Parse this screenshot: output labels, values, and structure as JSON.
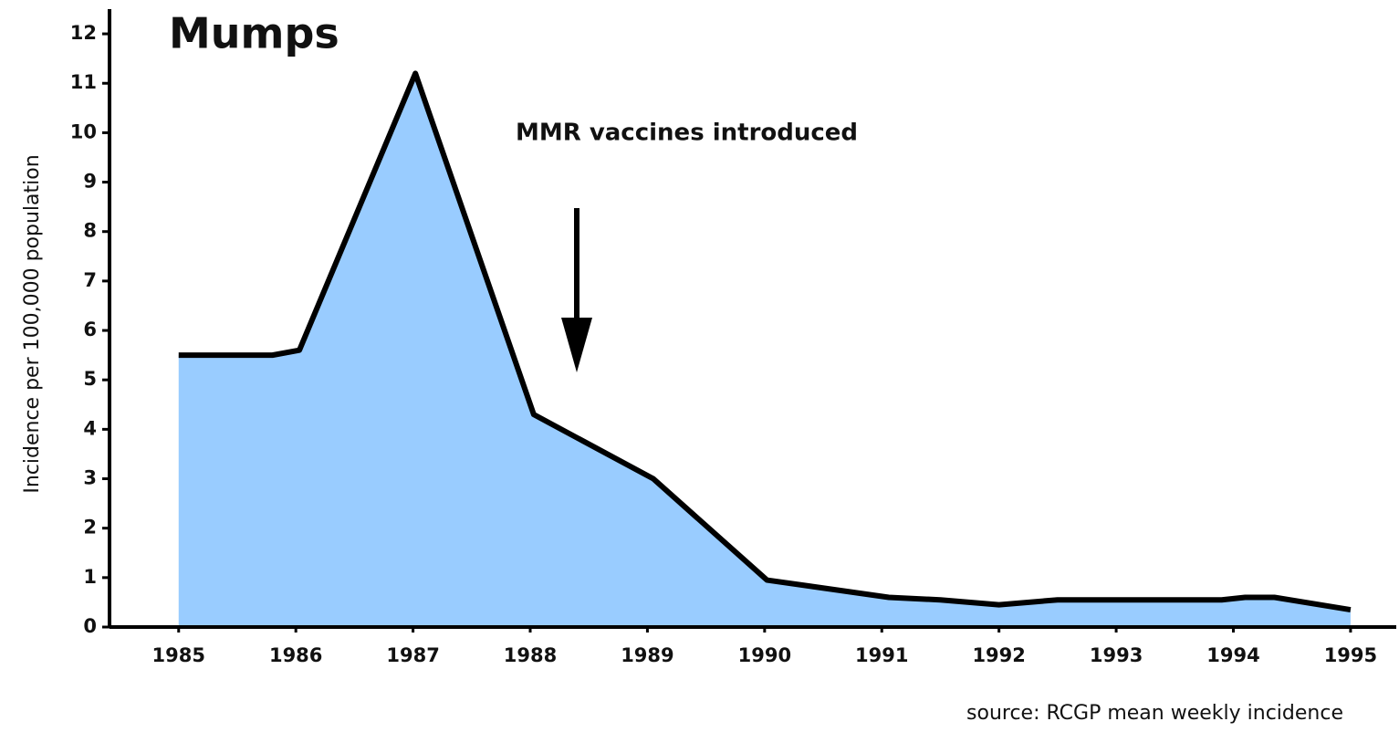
{
  "chart_data": {
    "type": "area",
    "title": "Mumps",
    "ylabel": "Incidence per 100,000 population",
    "annotations": [
      "MMR vaccines introduced"
    ],
    "source": "source: RCGP mean weekly incidence",
    "x": [
      1985,
      1985.8,
      1986.03,
      1987.02,
      1988.03,
      1989.05,
      1990.02,
      1991.06,
      1991.5,
      1992.0,
      1992.5,
      1993.9,
      1994.1,
      1994.35,
      1995
    ],
    "series": [
      {
        "name": "Mumps",
        "color": "#99ccff",
        "values": [
          5.5,
          5.5,
          5.6,
          11.2,
          4.3,
          3.0,
          0.95,
          0.6,
          0.55,
          0.45,
          0.55,
          0.55,
          0.6,
          0.6,
          0.35
        ]
      }
    ],
    "xlim": [
      1984.41,
      1995.39
    ],
    "xticks": [
      1985,
      1986,
      1987,
      1988,
      1989,
      1990,
      1991,
      1992,
      1993,
      1994,
      1995
    ],
    "ylim": [
      0,
      12.5
    ],
    "yticks": [
      0,
      1,
      2,
      3,
      4,
      5,
      6,
      7,
      8,
      9,
      10,
      11,
      12
    ]
  }
}
